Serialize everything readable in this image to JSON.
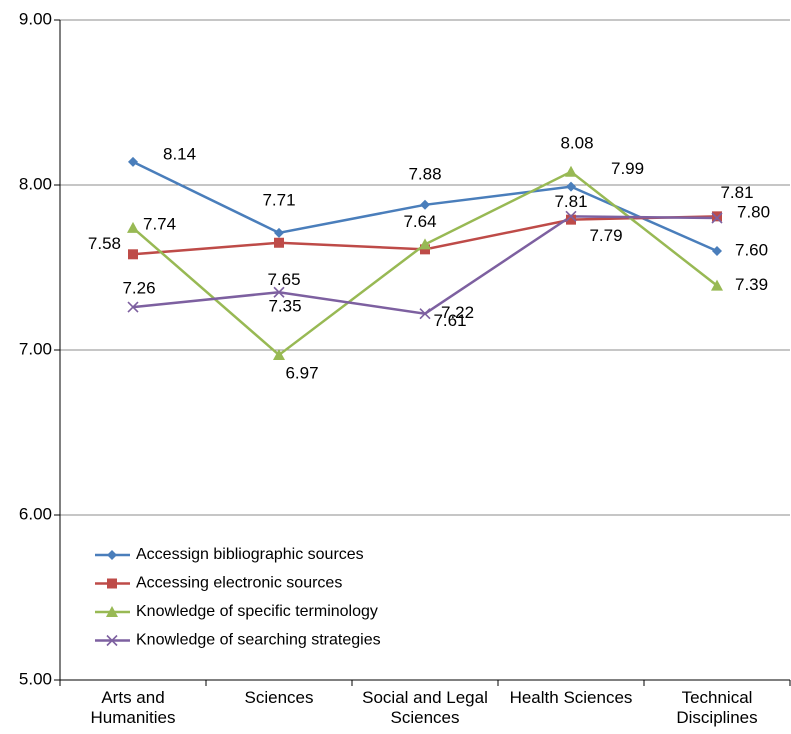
{
  "chart_data": {
    "type": "line",
    "categories": [
      "Arts and Humanities",
      "Sciences",
      "Social and Legal Sciences",
      "Health Sciences",
      "Technical Disciplines"
    ],
    "series": [
      {
        "name": "Accessign bibliographic sources",
        "color": "#4a7ebb",
        "marker": "diamond",
        "values": [
          8.14,
          7.71,
          7.88,
          7.99,
          7.6
        ],
        "value_labels": [
          "8.14",
          "7.71",
          "7.88",
          "7.99",
          "7.60"
        ]
      },
      {
        "name": "Accessing electronic sources",
        "color": "#be4b48",
        "marker": "square",
        "values": [
          7.58,
          7.65,
          7.61,
          7.79,
          7.81
        ],
        "value_labels": [
          "7.58",
          "7.65",
          "7.61",
          "7.79",
          "7.81"
        ]
      },
      {
        "name": "Knowledge of specific terminology",
        "color": "#98b954",
        "marker": "triangle",
        "values": [
          7.74,
          6.97,
          7.64,
          8.08,
          7.39
        ],
        "value_labels": [
          "7.74",
          "6.97",
          "7.64",
          "8.08",
          "7.39"
        ]
      },
      {
        "name": "Knowledge of searching strategies",
        "color": "#7d60a0",
        "marker": "x",
        "values": [
          7.26,
          7.35,
          7.22,
          7.81,
          7.8
        ],
        "value_labels": [
          "7.26",
          "7.35",
          "7.22",
          "7.81",
          "7.80"
        ]
      }
    ],
    "ylim": [
      5,
      9
    ],
    "yticks": [
      {
        "value": 5,
        "label": "5.00"
      },
      {
        "value": 6,
        "label": "6.00"
      },
      {
        "value": 7,
        "label": "7.00"
      },
      {
        "value": 8,
        "label": "8.00"
      },
      {
        "value": 9,
        "label": "9.00"
      }
    ],
    "grid": true,
    "legend": "lower left"
  }
}
